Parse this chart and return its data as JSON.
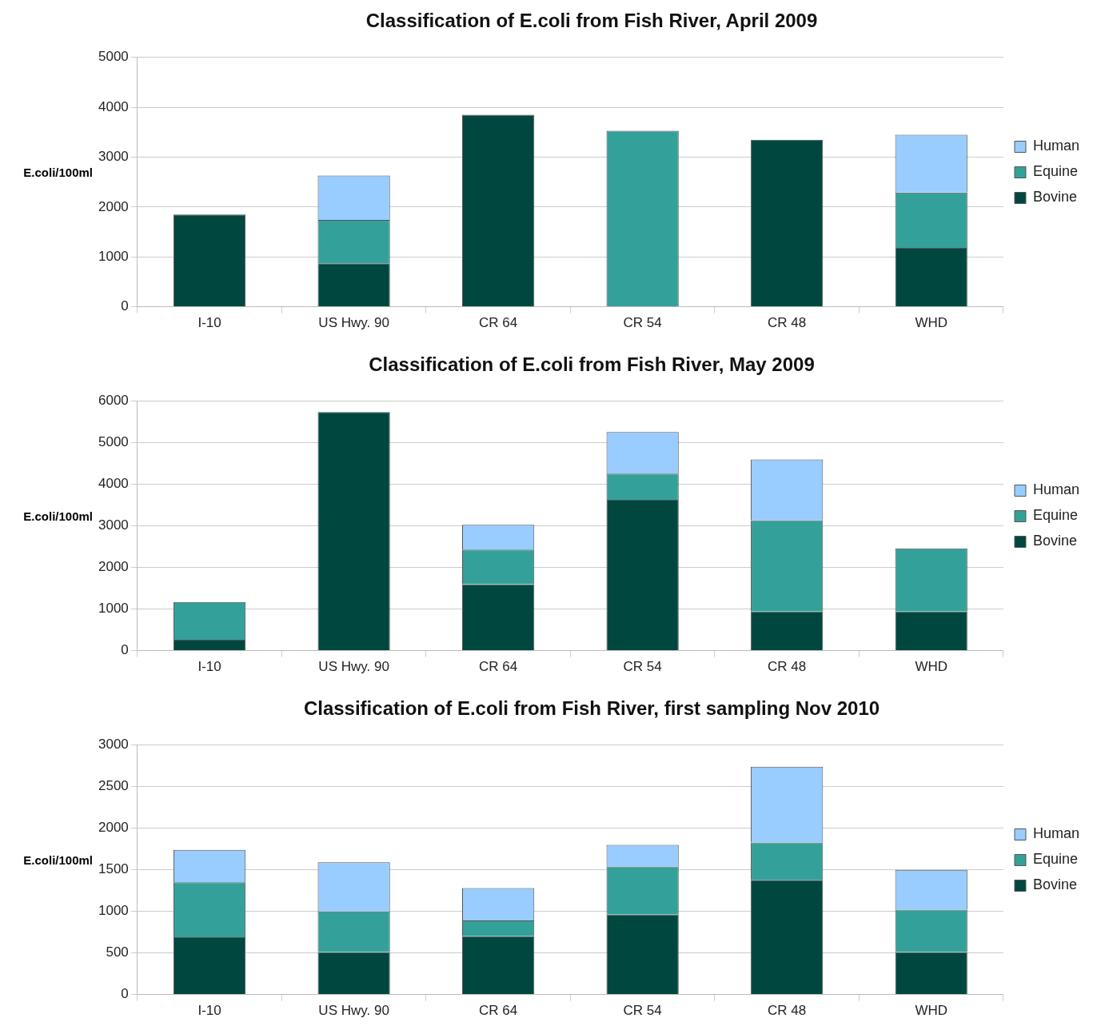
{
  "chart_data": [
    {
      "type": "bar",
      "title": "Classification of E.coli from Fish River, April 2009",
      "ylabel": "E.coli/100ml",
      "categories": [
        "I-10",
        "US Hwy. 90",
        "CR 64",
        "CR 54",
        "CR 48",
        "WHD"
      ],
      "stacked": true,
      "legend": "right",
      "grid": "y",
      "ylim": [
        0,
        5000
      ],
      "yticks": [
        0,
        1000,
        2000,
        3000,
        4000,
        5000
      ],
      "series": [
        {
          "name": "Bovine",
          "color": "#00473f",
          "values": [
            1850,
            870,
            3850,
            null,
            3350,
            1180
          ]
        },
        {
          "name": "Equine",
          "color": "#33a199",
          "values": [
            null,
            870,
            null,
            3530,
            null,
            1110
          ]
        },
        {
          "name": "Human",
          "color": "#99ccff",
          "values": [
            null,
            890,
            null,
            null,
            null,
            1160
          ]
        }
      ]
    },
    {
      "type": "bar",
      "title": "Classification of E.coli from Fish River, May 2009",
      "ylabel": "E.coli/100ml",
      "categories": [
        "I-10",
        "US Hwy. 90",
        "CR 64",
        "CR 54",
        "CR 48",
        "WHD"
      ],
      "stacked": true,
      "legend": "right",
      "grid": "y",
      "ylim": [
        0,
        6000
      ],
      "yticks": [
        0,
        1000,
        2000,
        3000,
        4000,
        5000,
        6000
      ],
      "series": [
        {
          "name": "Bovine",
          "color": "#00473f",
          "values": [
            260,
            5740,
            1600,
            3630,
            940,
            940
          ]
        },
        {
          "name": "Equine",
          "color": "#33a199",
          "values": [
            910,
            null,
            830,
            630,
            2200,
            1520
          ]
        },
        {
          "name": "Human",
          "color": "#99ccff",
          "values": [
            null,
            null,
            600,
            1000,
            1460,
            null
          ]
        }
      ]
    },
    {
      "type": "bar",
      "title": "Classification of E.coli from Fish River, first sampling Nov 2010",
      "ylabel": "E.coli/100ml",
      "categories": [
        "I-10",
        "US Hwy. 90",
        "CR 64",
        "CR 54",
        "CR 48",
        "WHD"
      ],
      "stacked": true,
      "legend": "right",
      "grid": "y",
      "ylim": [
        0,
        3000
      ],
      "yticks": [
        0,
        500,
        1000,
        1500,
        2000,
        2500,
        3000
      ],
      "series": [
        {
          "name": "Bovine",
          "color": "#00473f",
          "values": [
            690,
            510,
            700,
            960,
            1380,
            510
          ]
        },
        {
          "name": "Equine",
          "color": "#33a199",
          "values": [
            660,
            490,
            190,
            580,
            450,
            510
          ]
        },
        {
          "name": "Human",
          "color": "#99ccff",
          "values": [
            390,
            590,
            390,
            260,
            910,
            480
          ]
        }
      ]
    }
  ]
}
